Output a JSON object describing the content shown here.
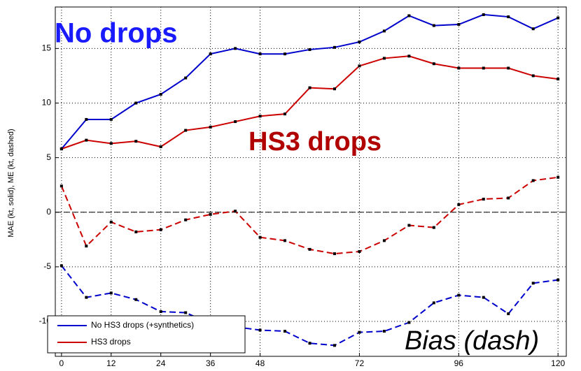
{
  "chart_data": {
    "type": "line",
    "y_label": "MAE (kt, solid), ME (kt, dashed)",
    "x": [
      0,
      6,
      12,
      18,
      24,
      30,
      36,
      42,
      48,
      54,
      60,
      66,
      72,
      78,
      84,
      90,
      96,
      102,
      108,
      114,
      120
    ],
    "series": [
      {
        "name": "No HS3 drops (+synthetics)",
        "color": "#0000cc",
        "mae": [
          5.8,
          8.5,
          8.5,
          10.0,
          10.8,
          12.3,
          14.5,
          15.0,
          14.5,
          14.5,
          14.9,
          15.1,
          15.6,
          16.6,
          18.0,
          17.1,
          17.2,
          18.1,
          17.9,
          16.8,
          17.8
        ],
        "me": [
          -4.9,
          -7.8,
          -7.4,
          -8.0,
          -9.1,
          -9.2,
          -10.2,
          -10.5,
          -10.8,
          -10.9,
          -12.0,
          -12.2,
          -11.0,
          -10.9,
          -10.1,
          -8.3,
          -7.6,
          -7.8,
          -9.3,
          -6.5,
          -6.2
        ]
      },
      {
        "name": "HS3 drops",
        "color": "#cc0000",
        "mae": [
          5.8,
          6.6,
          6.3,
          6.5,
          6.0,
          7.5,
          7.8,
          8.3,
          8.8,
          9.0,
          11.4,
          11.3,
          13.4,
          14.1,
          14.3,
          13.6,
          13.2,
          13.2,
          13.2,
          12.5,
          12.2
        ],
        "me": [
          2.4,
          -3.1,
          -0.9,
          -1.8,
          -1.6,
          -0.7,
          -0.2,
          0.1,
          -2.3,
          -2.6,
          -3.4,
          -3.8,
          -3.6,
          -2.6,
          -1.2,
          -1.4,
          0.7,
          1.2,
          1.3,
          2.9,
          3.2
        ]
      }
    ],
    "xlim": [
      -1.5,
      122
    ],
    "ylim": [
      -13.2,
      18.8
    ],
    "xticks": [
      0,
      12,
      24,
      36,
      48,
      72,
      96,
      120
    ],
    "yticks": [
      -10,
      -5,
      0,
      5,
      10,
      15
    ],
    "reference_line": 0,
    "grid": true,
    "legend": "lower left",
    "annotations": [
      {
        "text": "No drops",
        "color": "#1a1aff"
      },
      {
        "text": "HS3 drops",
        "color": "#b00000"
      },
      {
        "text": "Bias (dash)",
        "color": "#000000"
      }
    ]
  }
}
